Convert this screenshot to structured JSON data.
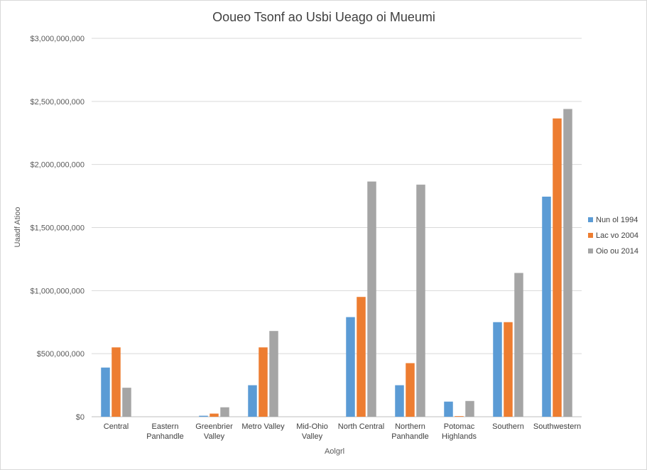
{
  "chart_data": {
    "type": "bar",
    "title": "Ooueo Tsonf ao Usbi Ueago oi Mueumi",
    "xlabel": "Aolgrl",
    "ylabel": "Uaadf Atioo",
    "ylim": [
      0,
      3000000000
    ],
    "yticks": [
      0,
      500000000,
      1000000000,
      1500000000,
      2000000000,
      2500000000,
      3000000000
    ],
    "ytick_labels": [
      "$0",
      "$500,000,000",
      "$1,000,000,000",
      "$1,500,000,000",
      "$2,000,000,000",
      "$2,500,000,000",
      "$3,000,000,000"
    ],
    "grid": true,
    "legend_position": "right",
    "categories": [
      [
        "Central"
      ],
      [
        "Eastern",
        "Panhandle"
      ],
      [
        "Greenbrier",
        "Valley"
      ],
      [
        "Metro Valley"
      ],
      [
        "Mid-Ohio",
        "Valley"
      ],
      [
        "North Central"
      ],
      [
        "Northern",
        "Panhandle"
      ],
      [
        "Potomac",
        "Highlands"
      ],
      [
        "Southern"
      ],
      [
        "Southwestern"
      ]
    ],
    "series": [
      {
        "name": "Nun ol 1994",
        "color": "#5b9bd5",
        "values": [
          390000000,
          0,
          8000000,
          250000000,
          0,
          790000000,
          250000000,
          120000000,
          750000000,
          1745000000
        ]
      },
      {
        "name": "Lac vo 2004",
        "color": "#ed7d31",
        "values": [
          550000000,
          0,
          25000000,
          550000000,
          0,
          950000000,
          425000000,
          5000000,
          750000000,
          2365000000
        ]
      },
      {
        "name": "Oio ou 2014",
        "color": "#a5a5a5",
        "values": [
          230000000,
          0,
          75000000,
          680000000,
          0,
          1865000000,
          1840000000,
          125000000,
          1140000000,
          2440000000
        ]
      }
    ]
  }
}
